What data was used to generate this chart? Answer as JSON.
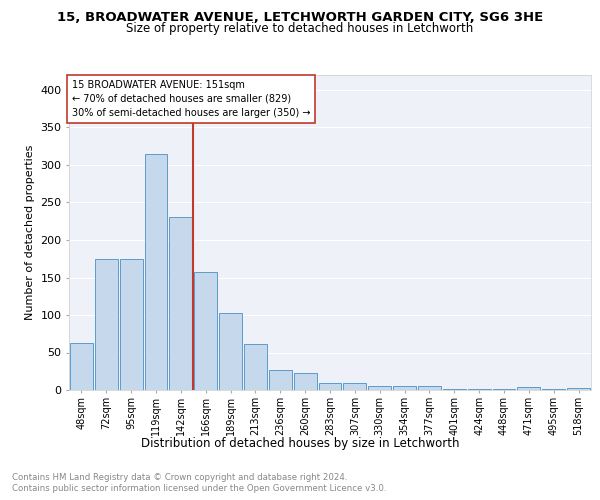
{
  "title1": "15, BROADWATER AVENUE, LETCHWORTH GARDEN CITY, SG6 3HE",
  "title2": "Size of property relative to detached houses in Letchworth",
  "xlabel": "Distribution of detached houses by size in Letchworth",
  "ylabel": "Number of detached properties",
  "bar_labels": [
    "48sqm",
    "72sqm",
    "95sqm",
    "119sqm",
    "142sqm",
    "166sqm",
    "189sqm",
    "213sqm",
    "236sqm",
    "260sqm",
    "283sqm",
    "307sqm",
    "330sqm",
    "354sqm",
    "377sqm",
    "401sqm",
    "424sqm",
    "448sqm",
    "471sqm",
    "495sqm",
    "518sqm"
  ],
  "bar_values": [
    63,
    175,
    175,
    315,
    230,
    157,
    103,
    62,
    27,
    23,
    9,
    10,
    6,
    6,
    5,
    1,
    1,
    1,
    4,
    1,
    3
  ],
  "bar_color": "#c5d8ec",
  "bar_edge_color": "#4a90c4",
  "annotation_line0": "15 BROADWATER AVENUE: 151sqm",
  "annotation_line1": "← 70% of detached houses are smaller (829)",
  "annotation_line2": "30% of semi-detached houses are larger (350) →",
  "vline_color": "#c0392b",
  "annotation_box_color": "#ffffff",
  "annotation_box_edge": "#c0392b",
  "footer1": "Contains HM Land Registry data © Crown copyright and database right 2024.",
  "footer2": "Contains public sector information licensed under the Open Government Licence v3.0.",
  "ylim": [
    0,
    420
  ],
  "background_color": "#eef2f8"
}
